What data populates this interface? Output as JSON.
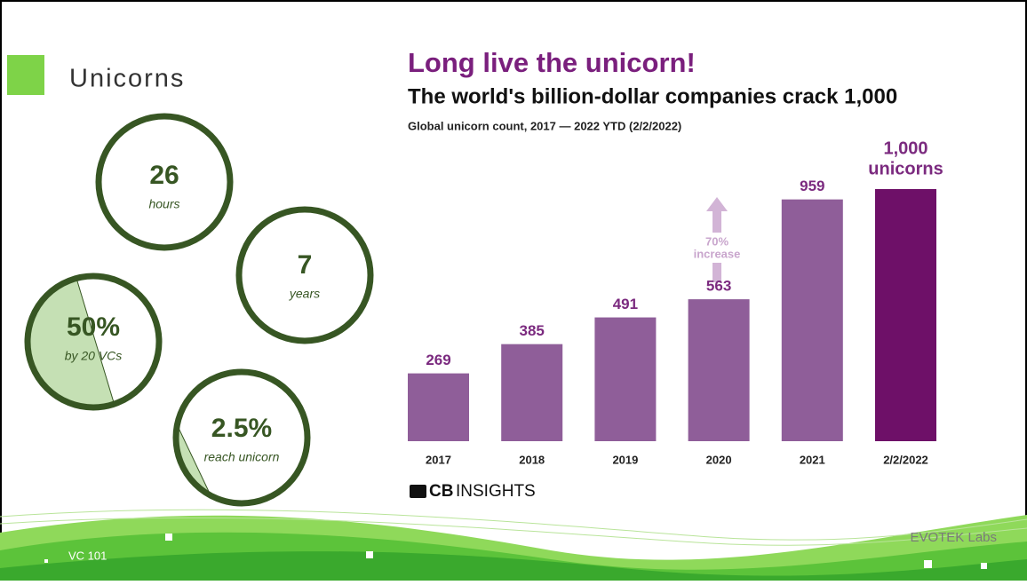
{
  "slide": {
    "heading": "Unicorns",
    "stats": [
      {
        "value": "26",
        "caption": "hours"
      },
      {
        "value": "7",
        "caption": "years"
      },
      {
        "value": "50%",
        "caption": "by 20 VCs"
      },
      {
        "value": "2.5%",
        "caption": "reach unicorn"
      }
    ],
    "footer": "VC 101",
    "brand": "EVOTEK Labs",
    "source_logo": {
      "bold": "CB",
      "light": "INSIGHTS"
    }
  },
  "chart_data": {
    "type": "bar",
    "title": "Long live the unicorn!",
    "subtitle": "The world's billion-dollar companies crack 1,000",
    "caption": "Global unicorn count, 2017 — 2022 YTD (2/2/2022)",
    "categories": [
      "2017",
      "2018",
      "2019",
      "2020",
      "2021",
      "2/2/2022"
    ],
    "values": [
      269,
      385,
      491,
      563,
      959,
      1000
    ],
    "value_labels": [
      "269",
      "385",
      "491",
      "563",
      "959",
      "1,000"
    ],
    "last_label_suffix": "unicorns",
    "colors": [
      "#8f5e99",
      "#8f5e99",
      "#8f5e99",
      "#8f5e99",
      "#8f5e99",
      "#6e1068"
    ],
    "annotation": [
      "70%",
      "increase"
    ]
  }
}
